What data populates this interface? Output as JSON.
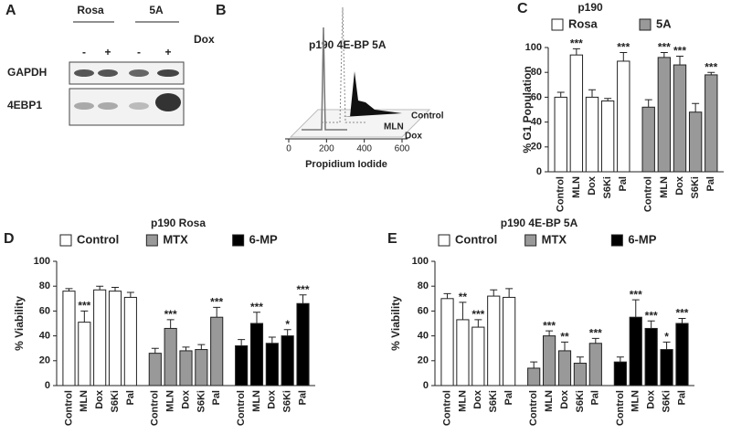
{
  "blot": {
    "panel": "A",
    "groups": [
      "Rosa",
      "5A"
    ],
    "treatment": "Dox",
    "lanes": [
      "-",
      "+",
      "-",
      "+"
    ],
    "rows": [
      "GAPDH",
      "4EBP1"
    ]
  },
  "flow": {
    "panel": "B",
    "title": "p190 4E-BP 5A",
    "traces": [
      "Control",
      "MLN",
      "Dox"
    ],
    "xlabel": "Propidium Iodide",
    "xlim": [
      0,
      600
    ],
    "xticks": [
      0,
      200,
      400,
      600
    ]
  },
  "chart_data": [
    {
      "type": "bar",
      "panel": "C",
      "title": "p190",
      "ylabel": "% G1 Population",
      "categories": [
        "Control",
        "MLN",
        "Dox",
        "S6Ki",
        "Pal"
      ],
      "ylim": [
        0,
        100
      ],
      "yticks": [
        0,
        20,
        40,
        60,
        80,
        100
      ],
      "series": [
        {
          "name": "Rosa",
          "color": "#ffffff",
          "values": [
            60,
            94,
            60,
            57,
            89
          ],
          "errors": [
            4,
            5,
            6,
            2,
            7
          ],
          "stars": [
            null,
            "***",
            null,
            null,
            "***"
          ]
        },
        {
          "name": "5A",
          "color": "#999999",
          "values": [
            52,
            92,
            86,
            48,
            78
          ],
          "errors": [
            6,
            4,
            7,
            7,
            2
          ],
          "stars": [
            null,
            "***",
            "***",
            null,
            "***"
          ]
        }
      ]
    },
    {
      "type": "bar",
      "panel": "D",
      "title": "p190 Rosa",
      "ylabel": "% Viability",
      "categories": [
        "Control",
        "MLN",
        "Dox",
        "S6Ki",
        "Pal"
      ],
      "ylim": [
        0,
        100
      ],
      "yticks": [
        0,
        20,
        40,
        60,
        80,
        100
      ],
      "series": [
        {
          "name": "Control",
          "color": "#ffffff",
          "values": [
            76,
            51,
            77,
            76,
            71
          ],
          "errors": [
            2,
            9,
            3,
            3,
            4
          ],
          "stars": [
            null,
            "***",
            null,
            null,
            null
          ]
        },
        {
          "name": "MTX",
          "color": "#999999",
          "values": [
            26,
            46,
            28,
            29,
            55
          ],
          "errors": [
            4,
            7,
            3,
            4,
            8
          ],
          "stars": [
            null,
            "***",
            null,
            null,
            "***"
          ]
        },
        {
          "name": "6-MP",
          "color": "#000000",
          "values": [
            32,
            50,
            34,
            40,
            66
          ],
          "errors": [
            5,
            9,
            5,
            5,
            7
          ],
          "stars": [
            null,
            "***",
            null,
            "*",
            "***"
          ]
        }
      ]
    },
    {
      "type": "bar",
      "panel": "E",
      "title": "p190 4E-BP 5A",
      "ylabel": "% Viability",
      "categories": [
        "Control",
        "MLN",
        "Dox",
        "S6Ki",
        "Pal"
      ],
      "ylim": [
        0,
        100
      ],
      "yticks": [
        0,
        20,
        40,
        60,
        80,
        100
      ],
      "series": [
        {
          "name": "Control",
          "color": "#ffffff",
          "values": [
            70,
            53,
            47,
            72,
            71
          ],
          "errors": [
            4,
            14,
            6,
            5,
            7
          ],
          "stars": [
            null,
            "**",
            "***",
            null,
            null
          ]
        },
        {
          "name": "MTX",
          "color": "#999999",
          "values": [
            14,
            40,
            28,
            18,
            34
          ],
          "errors": [
            5,
            4,
            7,
            5,
            4
          ],
          "stars": [
            null,
            "***",
            "**",
            null,
            "***"
          ]
        },
        {
          "name": "6-MP",
          "color": "#000000",
          "values": [
            19,
            55,
            46,
            29,
            50
          ],
          "errors": [
            4,
            14,
            6,
            6,
            4
          ],
          "stars": [
            null,
            "***",
            "***",
            "*",
            "***"
          ]
        }
      ]
    }
  ]
}
